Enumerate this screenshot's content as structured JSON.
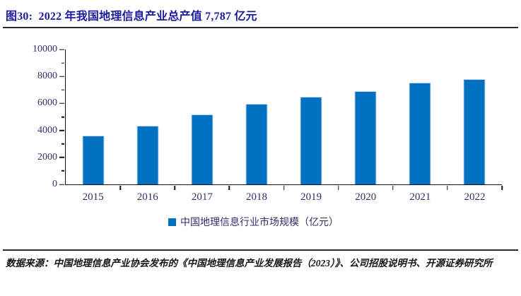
{
  "figure": {
    "title": "图30:  2022 年我国地理信息产业总产值 7,787 亿元"
  },
  "chart_data": {
    "type": "bar",
    "title": "2022 年我国地理信息产业总产值 7,787 亿元",
    "categories": [
      "2015",
      "2016",
      "2017",
      "2018",
      "2019",
      "2020",
      "2021",
      "2022"
    ],
    "values": [
      3600,
      4360,
      5180,
      5957,
      6476,
      6890,
      7524,
      7787
    ],
    "series_name": "中国地理信息行业市场规模（亿元）",
    "xlabel": "",
    "ylabel": "",
    "ylim": [
      0,
      10000
    ],
    "yticks": [
      0,
      2000,
      4000,
      6000,
      8000,
      10000
    ],
    "minor_tick_interval": 1000,
    "grid": false,
    "legend_position": "bottom",
    "bar_color": "#0070C0",
    "bar_border_color": "#c6d9f0"
  },
  "legend": {
    "label": "中国地理信息行业市场规模（亿元）",
    "swatch_color": "#0070C0"
  },
  "source": {
    "text": "数据来源：中国地理信息产业协会发布的《中国地理信息产业发展报告（2023）》、公司招股说明书、开源证券研究所"
  },
  "colors": {
    "title_text": "#1b1b9e",
    "axis_text": "#30306b",
    "divider": "#2b2b3d",
    "axis_line": "#111111"
  }
}
